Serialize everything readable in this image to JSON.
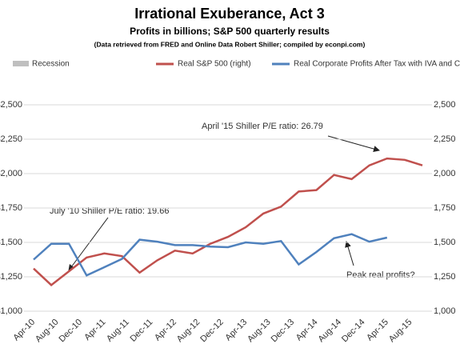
{
  "chart_data": {
    "type": "line",
    "title": "Irrational Exuberance, Act 3",
    "subtitle": "Profits in billions; S&P 500 quarterly results",
    "source": "(Data retrieved from FRED and Online Data Robert Shiller; compiled by econpi.com)",
    "recession": {
      "name": "Recession",
      "color": "#bfbfbf"
    },
    "x": [
      "Apr-10",
      "Jul-10",
      "Oct-10",
      "Jan-11",
      "Apr-11",
      "Jul-11",
      "Oct-11",
      "Jan-12",
      "Apr-12",
      "Jul-12",
      "Oct-12",
      "Jan-13",
      "Apr-13",
      "Jul-13",
      "Oct-13",
      "Jan-14",
      "Apr-14",
      "Jul-14",
      "Oct-14",
      "Jan-15",
      "Apr-15",
      "Jul-15",
      "Oct-15"
    ],
    "xticks": [
      "Apr-10",
      "Aug-10",
      "Dec-10",
      "Apr-11",
      "Aug-11",
      "Dec-11",
      "Apr-12",
      "Aug-12",
      "Dec-12",
      "Apr-13",
      "Aug-13",
      "Dec-13",
      "Apr-14",
      "Aug-14",
      "Dec-14",
      "Apr-15",
      "Aug-15"
    ],
    "series": [
      {
        "name": "Real S&P 500 (right)",
        "color": "#c0504d",
        "axis": "y2",
        "values": [
          1310,
          1190,
          1290,
          1390,
          1420,
          1400,
          1280,
          1370,
          1440,
          1420,
          1490,
          1540,
          1610,
          1710,
          1760,
          1870,
          1880,
          1990,
          1960,
          2060,
          2110,
          2100,
          2060
        ]
      },
      {
        "name": "Real Corporate Profits After Tax with IVA and CCadj (left)",
        "color": "#4f81bd",
        "values": [
          1375,
          1490,
          1490,
          1260,
          1320,
          1380,
          1520,
          1505,
          1480,
          1480,
          1470,
          1465,
          1500,
          1490,
          1510,
          1340,
          1430,
          1530,
          1560,
          1505,
          1535,
          null,
          null
        ]
      }
    ],
    "ylim": [
      1000,
      2500
    ],
    "yticks": [
      {
        "value": 1000,
        "label": "$1,000"
      },
      {
        "value": 1250,
        "label": "$1,250"
      },
      {
        "value": 1500,
        "label": "$1,500"
      },
      {
        "value": 1750,
        "label": "$1,750"
      },
      {
        "value": 2000,
        "label": "$2,000"
      },
      {
        "value": 2250,
        "label": "$2,250"
      },
      {
        "value": 2500,
        "label": "$2,500"
      }
    ],
    "y2lim": [
      1000,
      2500
    ],
    "y2ticks": [
      {
        "value": 1000,
        "label": "1,000"
      },
      {
        "value": 1250,
        "label": "1,250"
      },
      {
        "value": 1500,
        "label": "1,500"
      },
      {
        "value": 1750,
        "label": "1,750"
      },
      {
        "value": 2000,
        "label": "2,000"
      },
      {
        "value": 2250,
        "label": "2,250"
      },
      {
        "value": 2500,
        "label": "2,500"
      }
    ],
    "grid": true,
    "annotations": [
      "April '15 Shiller P/E ratio:  26.79",
      "July '10 Shiller P/E ratio: 19.66",
      "Peak real profits?"
    ]
  }
}
